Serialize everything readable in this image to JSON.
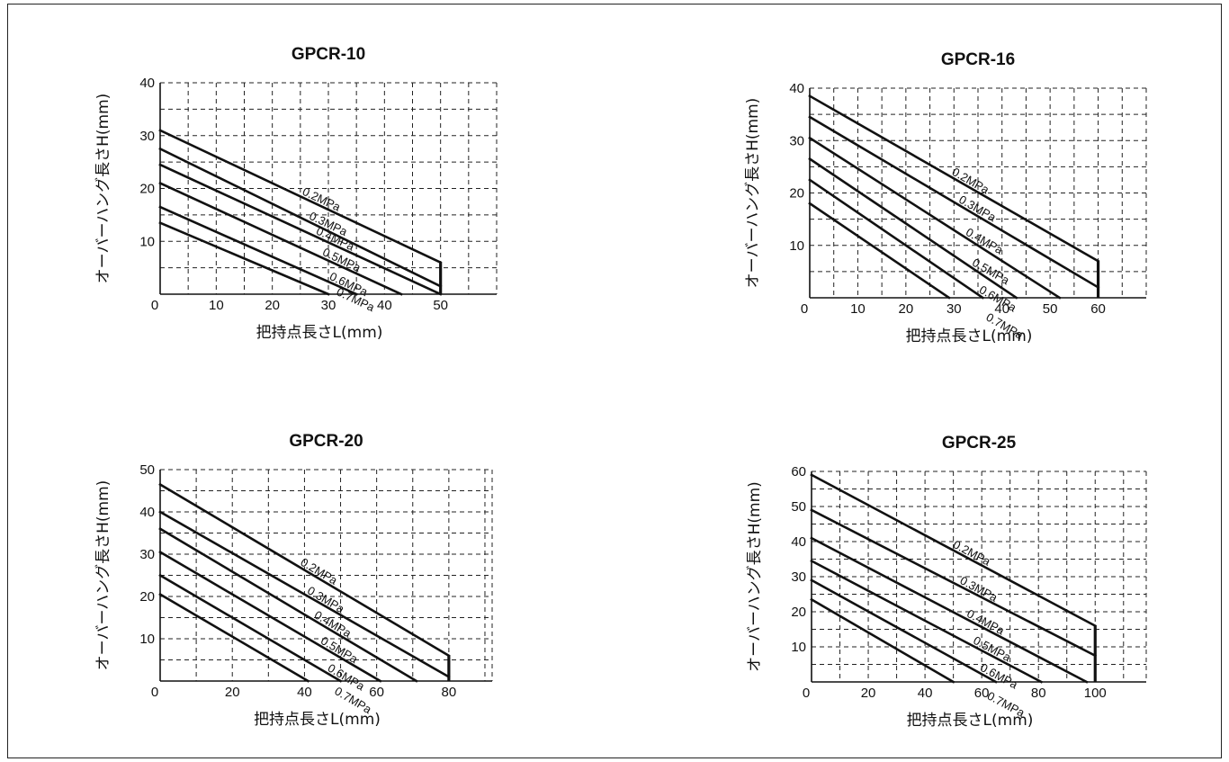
{
  "chart_data": [
    {
      "type": "line",
      "title": "GPCR-10",
      "xlabel": "把持点長さL(mm)",
      "ylabel": "オーバーハング長さH(mm)",
      "xlim": [
        0,
        60
      ],
      "ylim": [
        0,
        40
      ],
      "xticks": [
        0,
        10,
        20,
        30,
        40,
        50
      ],
      "yticks": [
        10,
        20,
        30,
        40
      ],
      "series": [
        {
          "name": "0.2MPa",
          "x": [
            0,
            50
          ],
          "y": [
            31,
            6
          ]
        },
        {
          "name": "0.3MPa",
          "x": [
            0,
            50
          ],
          "y": [
            27.5,
            1.5
          ]
        },
        {
          "name": "0.4MPa",
          "x": [
            0,
            50
          ],
          "y": [
            24.5,
            0
          ]
        },
        {
          "name": "0.5MPa",
          "x": [
            0,
            43
          ],
          "y": [
            21,
            0
          ]
        },
        {
          "name": "0.6MPa",
          "x": [
            0,
            35
          ],
          "y": [
            16.5,
            0
          ]
        },
        {
          "name": "0.7MPa",
          "x": [
            0,
            30
          ],
          "y": [
            13.5,
            0
          ]
        }
      ]
    },
    {
      "type": "line",
      "title": "GPCR-16",
      "xlabel": "把持点長さL(mm)",
      "ylabel": "オーバーハング長さH(mm)",
      "xlim": [
        0,
        70
      ],
      "ylim": [
        0,
        40
      ],
      "xticks": [
        0,
        10,
        20,
        30,
        40,
        50,
        60
      ],
      "yticks": [
        10,
        20,
        30,
        40
      ],
      "series": [
        {
          "name": "0.2MPa",
          "x": [
            0,
            60
          ],
          "y": [
            38.5,
            7
          ]
        },
        {
          "name": "0.3MPa",
          "x": [
            0,
            60
          ],
          "y": [
            34.5,
            2
          ]
        },
        {
          "name": "0.4MPa",
          "x": [
            0,
            52
          ],
          "y": [
            30.5,
            0
          ]
        },
        {
          "name": "0.5MPa",
          "x": [
            0,
            43
          ],
          "y": [
            26.5,
            0
          ]
        },
        {
          "name": "0.6MPa",
          "x": [
            0,
            36
          ],
          "y": [
            22.5,
            0
          ]
        },
        {
          "name": "0.7MPa",
          "x": [
            0,
            29
          ],
          "y": [
            18,
            0
          ]
        }
      ]
    },
    {
      "type": "line",
      "title": "GPCR-20",
      "xlabel": "把持点長さL(mm)",
      "ylabel": "オーバーハング長さH(mm)",
      "xlim": [
        0,
        92
      ],
      "ylim": [
        0,
        50
      ],
      "xticks": [
        0,
        20,
        40,
        60,
        80
      ],
      "yticks": [
        10,
        20,
        30,
        40,
        50
      ],
      "series": [
        {
          "name": "0.2MPa",
          "x": [
            0,
            80
          ],
          "y": [
            46.5,
            6
          ]
        },
        {
          "name": "0.3MPa",
          "x": [
            0,
            80
          ],
          "y": [
            40,
            1
          ]
        },
        {
          "name": "0.4MPa",
          "x": [
            0,
            71
          ],
          "y": [
            36,
            0
          ]
        },
        {
          "name": "0.5MPa",
          "x": [
            0,
            61
          ],
          "y": [
            30.5,
            0
          ]
        },
        {
          "name": "0.6MPa",
          "x": [
            0,
            50
          ],
          "y": [
            25,
            0
          ]
        },
        {
          "name": "0.7MPa",
          "x": [
            0,
            41
          ],
          "y": [
            20.5,
            0
          ]
        }
      ]
    },
    {
      "type": "line",
      "title": "GPCR-25",
      "xlabel": "把持点長さL(mm)",
      "ylabel": "オーバーハング長さH(mm)",
      "xlim": [
        0,
        118
      ],
      "ylim": [
        0,
        60
      ],
      "xticks": [
        0,
        20,
        40,
        60,
        80,
        100
      ],
      "yticks": [
        10,
        20,
        30,
        40,
        50,
        60
      ],
      "series": [
        {
          "name": "0.2MPa",
          "x": [
            0,
            100
          ],
          "y": [
            59,
            16
          ]
        },
        {
          "name": "0.3MPa",
          "x": [
            0,
            100
          ],
          "y": [
            49,
            7.5
          ]
        },
        {
          "name": "0.4MPa",
          "x": [
            0,
            97
          ],
          "y": [
            41,
            0
          ]
        },
        {
          "name": "0.5MPa",
          "x": [
            0,
            81
          ],
          "y": [
            34.5,
            0
          ]
        },
        {
          "name": "0.6MPa",
          "x": [
            0,
            65
          ],
          "y": [
            29,
            0
          ]
        },
        {
          "name": "0.7MPa",
          "x": [
            0,
            50
          ],
          "y": [
            23.5,
            0
          ]
        }
      ]
    }
  ]
}
